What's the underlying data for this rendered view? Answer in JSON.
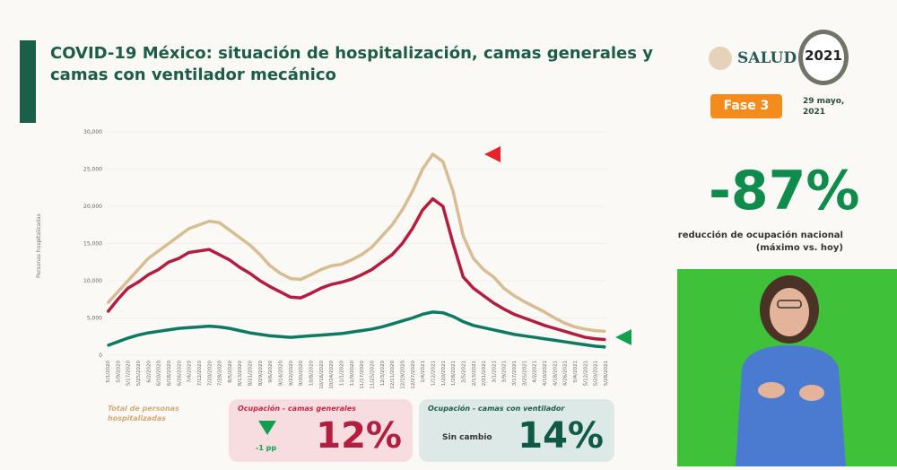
{
  "header": {
    "title": "COVID-19 México: situación de hospitalización, camas generales y camas con ventilador mecánico",
    "logo_text": "SALUD",
    "year_logo": "2021",
    "phase": "Fase 3",
    "date": "29 mayo, 2021"
  },
  "summary": {
    "value": "-87%",
    "caption": "reducción de ocupación nacional (máximo vs. hoy)"
  },
  "cards": {
    "total_label": "Total de personas hospitalizadas",
    "general": {
      "title": "Ocupación - camas generales",
      "change": "-1 pp",
      "value": "12%"
    },
    "ventilator": {
      "title": "Ocupación - camas con ventilador",
      "change": "Sin cambio",
      "value": "14%"
    }
  },
  "colors": {
    "total": "#d8bd93",
    "general": "#b31d3f",
    "ventilator": "#0e7a62"
  },
  "chart_data": {
    "type": "line",
    "title": "",
    "xlabel": "",
    "ylabel": "Personas hospitalizadas",
    "ylim": [
      0,
      30000
    ],
    "yticks": [
      "0",
      "5,000",
      "10,000",
      "15,000",
      "20,000",
      "25,000",
      "30,000"
    ],
    "x": [
      "5/1/2020",
      "5/9/2020",
      "5/17/2020",
      "5/25/2020",
      "6/2/2020",
      "6/10/2020",
      "6/18/2020",
      "6/26/2020",
      "7/4/2020",
      "7/12/2020",
      "7/20/2020",
      "7/28/2020",
      "8/5/2020",
      "8/13/2020",
      "8/21/2020",
      "8/29/2020",
      "9/6/2020",
      "9/14/2020",
      "9/22/2020",
      "9/30/2020",
      "10/8/2020",
      "10/16/2020",
      "10/24/2020",
      "11/1/2020",
      "11/9/2020",
      "11/17/2020",
      "11/25/2020",
      "12/3/2020",
      "12/11/2020",
      "12/19/2020",
      "12/27/2020",
      "1/4/2021",
      "1/12/2021",
      "1/20/2021",
      "1/28/2021",
      "2/5/2021",
      "2/13/2021",
      "2/21/2021",
      "3/1/2021",
      "3/9/2021",
      "3/17/2021",
      "3/25/2021",
      "4/2/2021",
      "4/10/2021",
      "4/18/2021",
      "4/26/2021",
      "5/4/2021",
      "5/12/2021",
      "5/20/2021",
      "5/28/2021"
    ],
    "series": [
      {
        "name": "Total de personas hospitalizadas",
        "values": [
          7000,
          8500,
          10000,
          11500,
          13000,
          14000,
          15000,
          16000,
          17000,
          17500,
          18000,
          17800,
          16800,
          15800,
          14800,
          13500,
          12000,
          11000,
          10300,
          10200,
          10800,
          11500,
          12000,
          12200,
          12800,
          13500,
          14500,
          16000,
          17500,
          19500,
          22000,
          25000,
          27000,
          26000,
          22000,
          16000,
          13000,
          11500,
          10500,
          9000,
          8000,
          7200,
          6500,
          5800,
          5000,
          4300,
          3800,
          3500,
          3300,
          3200
        ]
      },
      {
        "name": "Camas generales",
        "values": [
          5800,
          7500,
          9000,
          9800,
          10800,
          11500,
          12500,
          13000,
          13800,
          14000,
          14200,
          13500,
          12800,
          11800,
          11000,
          10000,
          9200,
          8500,
          7800,
          7700,
          8300,
          9000,
          9500,
          9800,
          10200,
          10800,
          11500,
          12500,
          13500,
          15000,
          17000,
          19500,
          21000,
          20000,
          15000,
          10500,
          9000,
          8000,
          7000,
          6200,
          5500,
          5000,
          4500,
          4000,
          3600,
          3200,
          2800,
          2400,
          2200,
          2100
        ]
      },
      {
        "name": "Camas con ventilador",
        "values": [
          1300,
          1800,
          2300,
          2700,
          3000,
          3200,
          3400,
          3600,
          3700,
          3800,
          3900,
          3800,
          3600,
          3300,
          3000,
          2800,
          2600,
          2500,
          2400,
          2500,
          2600,
          2700,
          2800,
          2900,
          3100,
          3300,
          3500,
          3800,
          4200,
          4600,
          5000,
          5500,
          5800,
          5700,
          5200,
          4500,
          4000,
          3700,
          3400,
          3100,
          2800,
          2600,
          2400,
          2200,
          2000,
          1800,
          1600,
          1400,
          1200,
          1100
        ]
      }
    ]
  }
}
